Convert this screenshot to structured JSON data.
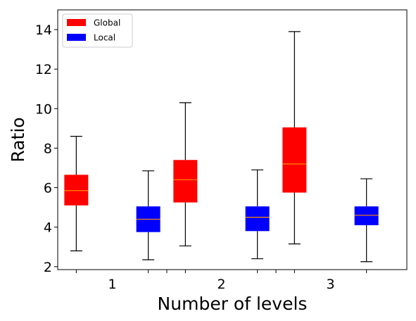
{
  "chart_data": {
    "type": "box",
    "xlabel": "Number of levels",
    "ylabel": "Ratio",
    "ylim": [
      1.85,
      15.0
    ],
    "yticks": [
      2,
      4,
      6,
      8,
      10,
      12,
      14
    ],
    "categories": [
      "1",
      "2",
      "3"
    ],
    "legend": {
      "placement": "top-left",
      "entries": [
        {
          "label": "Global",
          "color": "#ff0000"
        },
        {
          "label": "Local",
          "color": "#0000ff"
        }
      ]
    },
    "series": [
      {
        "name": "Global",
        "color": "#ff0000",
        "boxes": [
          {
            "category": "1",
            "whisker_low": 2.8,
            "q1": 5.1,
            "median": 5.85,
            "q3": 6.65,
            "whisker_high": 8.6
          },
          {
            "category": "2",
            "whisker_low": 3.05,
            "q1": 5.25,
            "median": 6.4,
            "q3": 7.4,
            "whisker_high": 10.3
          },
          {
            "category": "3",
            "whisker_low": 3.15,
            "q1": 5.75,
            "median": 7.2,
            "q3": 9.05,
            "whisker_high": 13.9
          }
        ]
      },
      {
        "name": "Local",
        "color": "#0000ff",
        "boxes": [
          {
            "category": "1",
            "whisker_low": 2.35,
            "q1": 3.75,
            "median": 4.4,
            "q3": 5.05,
            "whisker_high": 6.85
          },
          {
            "category": "2",
            "whisker_low": 2.4,
            "q1": 3.8,
            "median": 4.5,
            "q3": 5.05,
            "whisker_high": 6.9
          },
          {
            "category": "3",
            "whisker_low": 2.25,
            "q1": 4.1,
            "median": 4.6,
            "q3": 5.05,
            "whisker_high": 6.45
          }
        ]
      }
    ],
    "median_color": "#ff8c00",
    "grid": false
  }
}
